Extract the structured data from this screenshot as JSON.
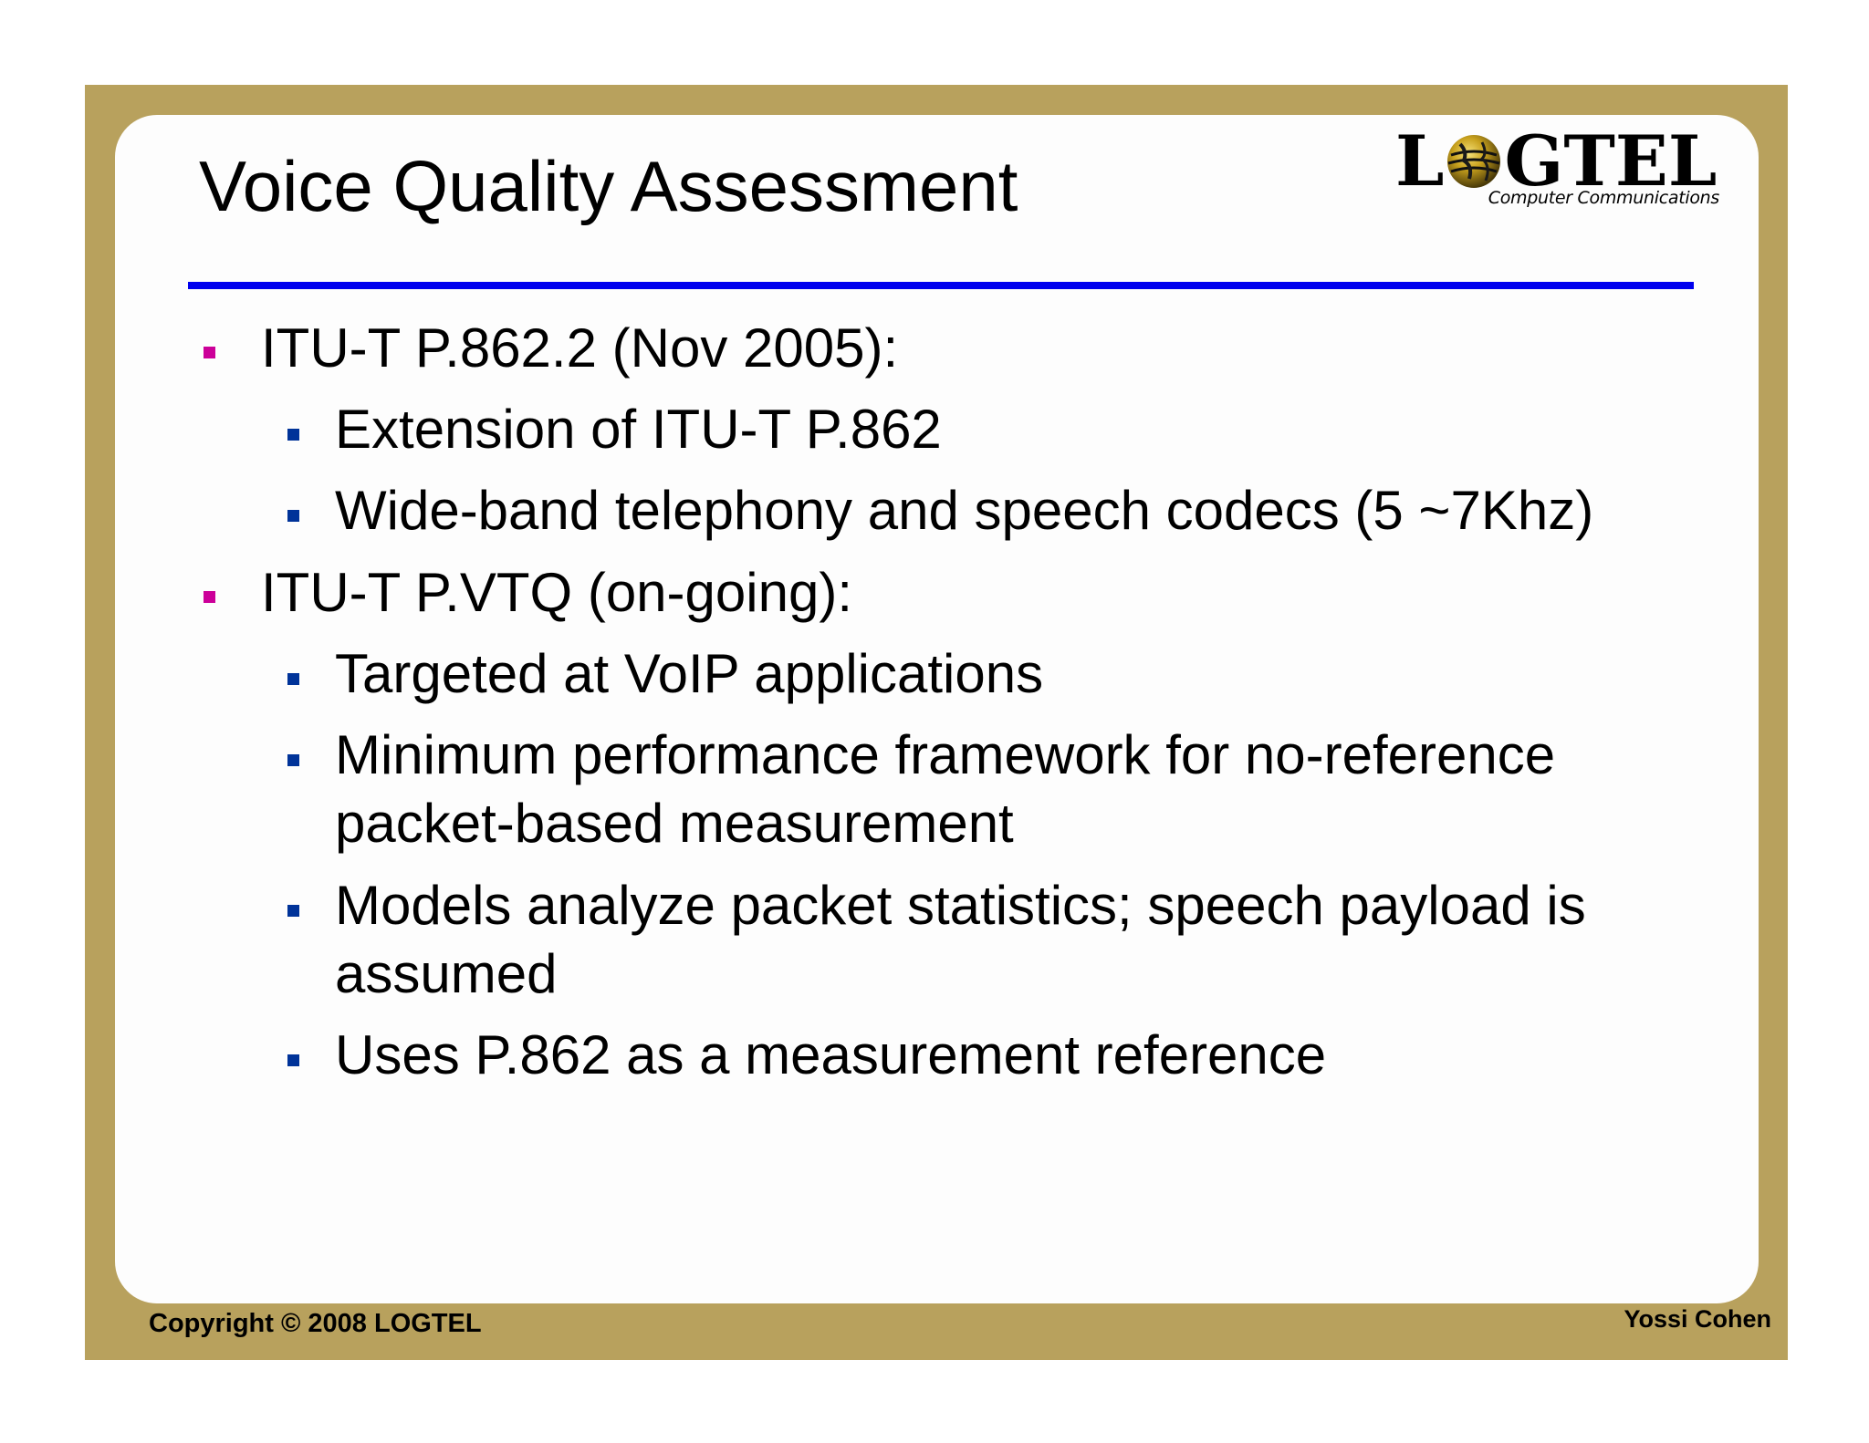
{
  "slide": {
    "title": "Voice Quality Assessment",
    "logo": {
      "word_start": "L",
      "word_end": "GTEL",
      "tagline": "Computer Communications",
      "icon": "globe-icon"
    },
    "bullets": [
      {
        "level": 1,
        "text": "ITU-T P.862.2 (Nov 2005):"
      },
      {
        "level": 2,
        "text": "Extension of ITU-T P.862"
      },
      {
        "level": 2,
        "text": "Wide-band telephony and speech codecs (5 ~7Khz)"
      },
      {
        "level": 1,
        "text": "ITU-T P.VTQ (on-going):"
      },
      {
        "level": 2,
        "text": "Targeted at VoIP applications"
      },
      {
        "level": 2,
        "text": "Minimum performance framework for no-reference",
        "continuation": "packet-based measurement"
      },
      {
        "level": 2,
        "text": "Models analyze packet statistics; speech payload is",
        "continuation": "assumed"
      },
      {
        "level": 2,
        "text": "Uses P.862 as a measurement reference"
      }
    ],
    "footer": {
      "copyright": "Copyright © 2008 LOGTEL",
      "author": "Yossi Cohen"
    }
  },
  "colors": {
    "frame": "#b8a15d",
    "panel": "#fdfdfd",
    "title_rule": "#0000ee",
    "bullet_level1": "#cc0099",
    "bullet_level2": "#003399"
  }
}
